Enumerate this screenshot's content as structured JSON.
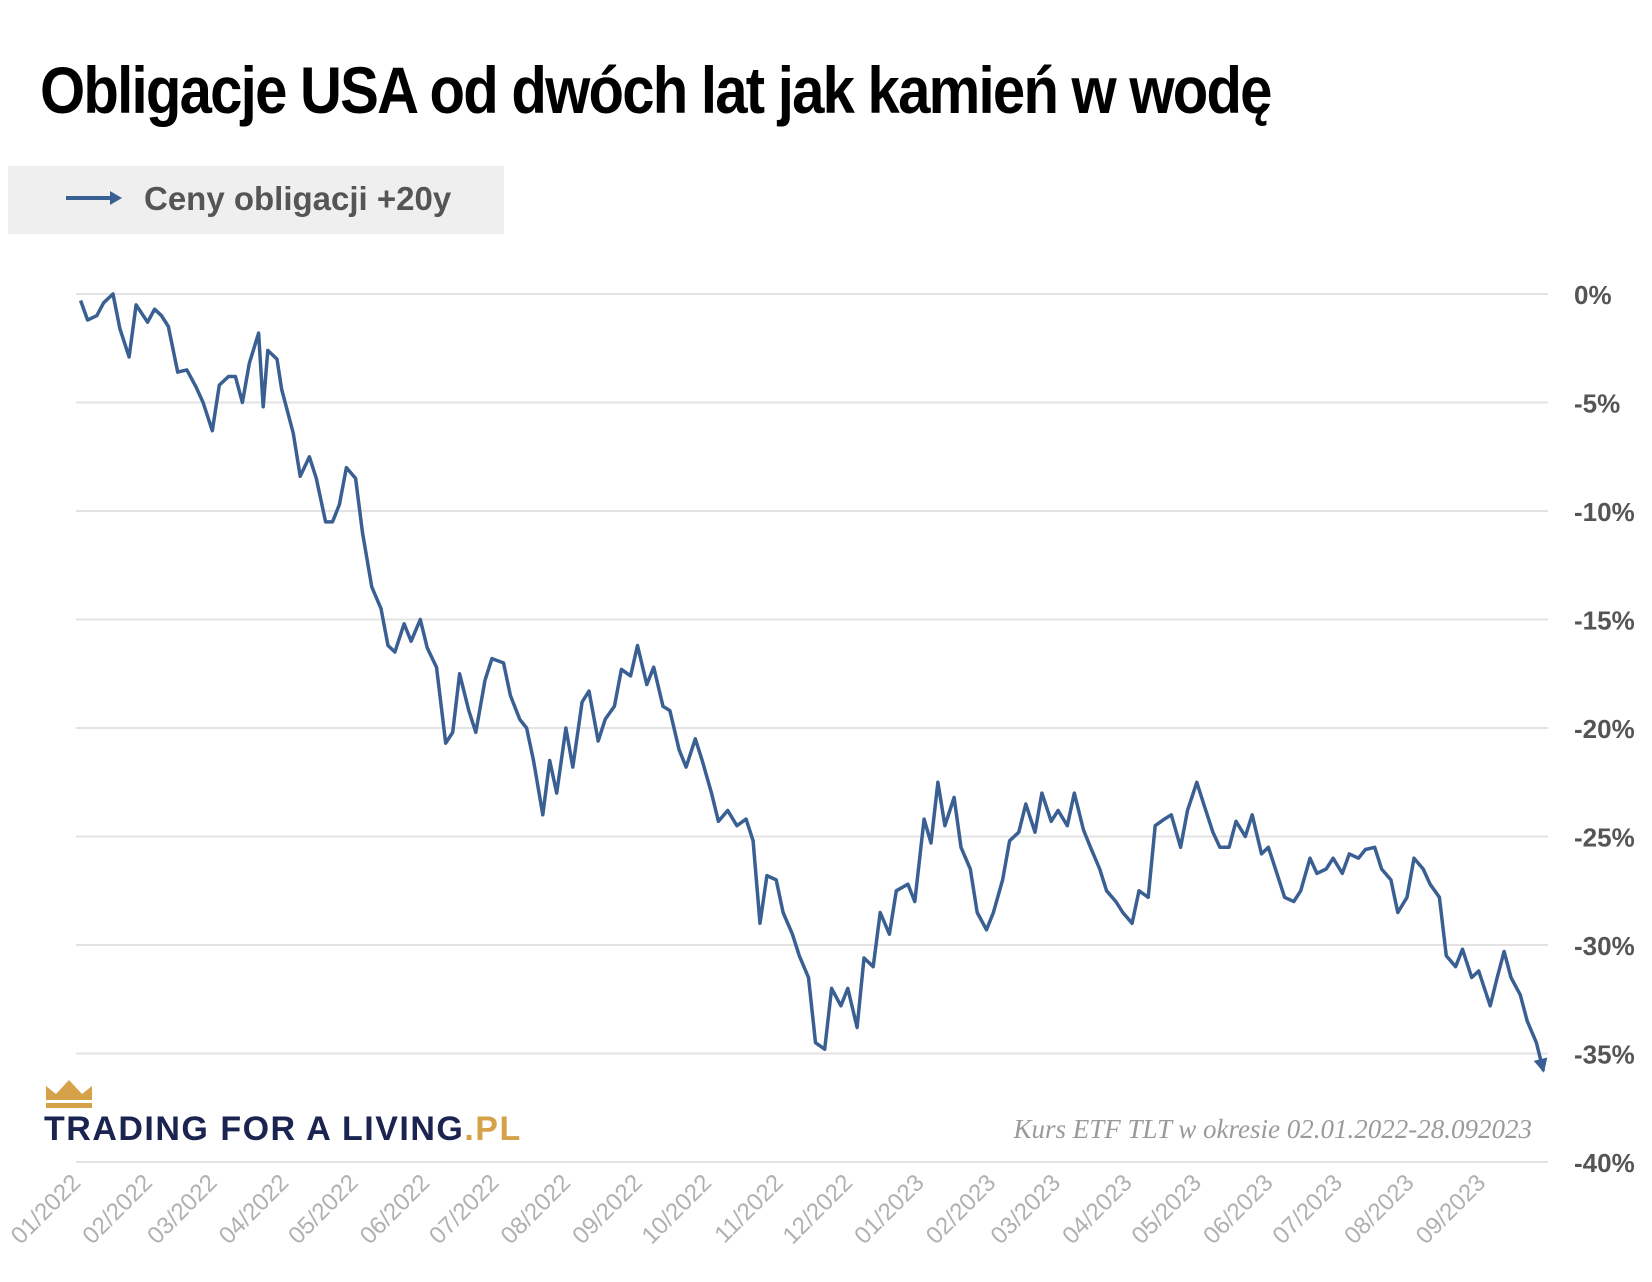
{
  "title": "Obligacje USA od dwóch lat jak kamień w wodę",
  "legend": {
    "label": "Ceny obligacji +20y",
    "color": "#3a5f92"
  },
  "brand": {
    "name": "TRADING FOR A LIVING",
    "suffix": ".PL",
    "text_color": "#1b2350",
    "accent_color": "#d5a24a"
  },
  "source_note": "Kurs ETF TLT w okresie 02.01.2022-28.092023",
  "chart_data": {
    "type": "line",
    "title": "Obligacje USA od dwóch lat jak kamień w wodę",
    "xlabel": "",
    "ylabel": "",
    "ylim": [
      -40,
      0
    ],
    "xlim": [
      "2022-01-01",
      "2023-09-30"
    ],
    "y_ticks": [
      0,
      -5,
      -10,
      -15,
      -20,
      -25,
      -30,
      -35,
      -40
    ],
    "y_tick_labels": [
      "0%",
      "-5%",
      "-10%",
      "-15%",
      "-20%",
      "-25%",
      "-30%",
      "-35%",
      "-40%"
    ],
    "x_ticks": [
      "2022-01-01",
      "2022-02-01",
      "2022-03-01",
      "2022-04-01",
      "2022-05-01",
      "2022-06-01",
      "2022-07-01",
      "2022-08-01",
      "2022-09-01",
      "2022-10-01",
      "2022-11-01",
      "2022-12-01",
      "2023-01-01",
      "2023-02-01",
      "2023-03-01",
      "2023-04-01",
      "2023-05-01",
      "2023-06-01",
      "2023-07-01",
      "2023-08-01",
      "2023-09-01"
    ],
    "x_tick_labels": [
      "01/2022",
      "02/2022",
      "03/2022",
      "04/2022",
      "05/2022",
      "06/2022",
      "07/2022",
      "08/2022",
      "09/2022",
      "10/2022",
      "11/2022",
      "12/2022",
      "01/2023",
      "02/2023",
      "03/2023",
      "04/2023",
      "05/2023",
      "06/2023",
      "07/2023",
      "08/2023",
      "09/2023"
    ],
    "grid": true,
    "legend_position": "top-left",
    "series": [
      {
        "name": "Ceny obligacji +20y",
        "color": "#3a5f92",
        "points": [
          [
            "2022-01-03",
            -0.3
          ],
          [
            "2022-01-06",
            -1.2
          ],
          [
            "2022-01-10",
            -1.0
          ],
          [
            "2022-01-13",
            -0.4
          ],
          [
            "2022-01-17",
            0.0
          ],
          [
            "2022-01-20",
            -1.6
          ],
          [
            "2022-01-24",
            -2.9
          ],
          [
            "2022-01-27",
            -0.5
          ],
          [
            "2022-02-01",
            -1.3
          ],
          [
            "2022-02-04",
            -0.7
          ],
          [
            "2022-02-07",
            -1.0
          ],
          [
            "2022-02-10",
            -1.5
          ],
          [
            "2022-02-14",
            -3.6
          ],
          [
            "2022-02-18",
            -3.5
          ],
          [
            "2022-02-22",
            -4.3
          ],
          [
            "2022-02-25",
            -5.0
          ],
          [
            "2022-03-01",
            -6.3
          ],
          [
            "2022-03-04",
            -4.2
          ],
          [
            "2022-03-08",
            -3.8
          ],
          [
            "2022-03-11",
            -3.8
          ],
          [
            "2022-03-14",
            -5.0
          ],
          [
            "2022-03-17",
            -3.2
          ],
          [
            "2022-03-21",
            -1.8
          ],
          [
            "2022-03-23",
            -5.2
          ],
          [
            "2022-03-25",
            -2.6
          ],
          [
            "2022-03-29",
            -3.0
          ],
          [
            "2022-03-31",
            -4.4
          ],
          [
            "2022-04-05",
            -6.4
          ],
          [
            "2022-04-08",
            -8.4
          ],
          [
            "2022-04-12",
            -7.5
          ],
          [
            "2022-04-15",
            -8.5
          ],
          [
            "2022-04-19",
            -10.5
          ],
          [
            "2022-04-22",
            -10.5
          ],
          [
            "2022-04-25",
            -9.7
          ],
          [
            "2022-04-28",
            -8.0
          ],
          [
            "2022-05-02",
            -8.5
          ],
          [
            "2022-05-05",
            -11.0
          ],
          [
            "2022-05-09",
            -13.5
          ],
          [
            "2022-05-13",
            -14.5
          ],
          [
            "2022-05-16",
            -16.2
          ],
          [
            "2022-05-19",
            -16.5
          ],
          [
            "2022-05-23",
            -15.2
          ],
          [
            "2022-05-26",
            -16.0
          ],
          [
            "2022-05-30",
            -15.0
          ],
          [
            "2022-06-02",
            -16.3
          ],
          [
            "2022-06-06",
            -17.2
          ],
          [
            "2022-06-10",
            -20.7
          ],
          [
            "2022-06-13",
            -20.2
          ],
          [
            "2022-06-16",
            -17.5
          ],
          [
            "2022-06-20",
            -19.2
          ],
          [
            "2022-06-23",
            -20.2
          ],
          [
            "2022-06-27",
            -17.8
          ],
          [
            "2022-06-30",
            -16.8
          ],
          [
            "2022-07-05",
            -17.0
          ],
          [
            "2022-07-08",
            -18.5
          ],
          [
            "2022-07-12",
            -19.6
          ],
          [
            "2022-07-15",
            -20.0
          ],
          [
            "2022-07-18",
            -21.5
          ],
          [
            "2022-07-22",
            -24.0
          ],
          [
            "2022-07-25",
            -21.5
          ],
          [
            "2022-07-28",
            -23.0
          ],
          [
            "2022-08-01",
            -20.0
          ],
          [
            "2022-08-04",
            -21.8
          ],
          [
            "2022-08-08",
            -18.8
          ],
          [
            "2022-08-11",
            -18.3
          ],
          [
            "2022-08-15",
            -20.6
          ],
          [
            "2022-08-18",
            -19.6
          ],
          [
            "2022-08-22",
            -19.0
          ],
          [
            "2022-08-25",
            -17.3
          ],
          [
            "2022-08-29",
            -17.6
          ],
          [
            "2022-09-01",
            -16.2
          ],
          [
            "2022-09-05",
            -18.0
          ],
          [
            "2022-09-08",
            -17.2
          ],
          [
            "2022-09-12",
            -19.0
          ],
          [
            "2022-09-15",
            -19.2
          ],
          [
            "2022-09-19",
            -21.0
          ],
          [
            "2022-09-22",
            -21.8
          ],
          [
            "2022-09-26",
            -20.5
          ],
          [
            "2022-09-29",
            -21.5
          ],
          [
            "2022-10-03",
            -23.0
          ],
          [
            "2022-10-06",
            -24.3
          ],
          [
            "2022-10-10",
            -23.8
          ],
          [
            "2022-10-14",
            -24.5
          ],
          [
            "2022-10-18",
            -24.2
          ],
          [
            "2022-10-21",
            -25.2
          ],
          [
            "2022-10-24",
            -29.0
          ],
          [
            "2022-10-27",
            -26.8
          ],
          [
            "2022-10-31",
            -27.0
          ],
          [
            "2022-11-03",
            -28.5
          ],
          [
            "2022-11-07",
            -29.5
          ],
          [
            "2022-11-10",
            -30.5
          ],
          [
            "2022-11-14",
            -31.5
          ],
          [
            "2022-11-17",
            -34.5
          ],
          [
            "2022-11-21",
            -34.8
          ],
          [
            "2022-11-24",
            -32.0
          ],
          [
            "2022-11-28",
            -32.8
          ],
          [
            "2022-12-01",
            -32.0
          ],
          [
            "2022-12-05",
            -33.8
          ],
          [
            "2022-12-08",
            -30.6
          ],
          [
            "2022-12-12",
            -31.0
          ],
          [
            "2022-12-15",
            -28.5
          ],
          [
            "2022-12-19",
            -29.5
          ],
          [
            "2022-12-22",
            -27.5
          ],
          [
            "2022-12-27",
            -27.2
          ],
          [
            "2022-12-30",
            -28.0
          ],
          [
            "2023-01-03",
            -24.2
          ],
          [
            "2023-01-06",
            -25.3
          ],
          [
            "2023-01-09",
            -22.5
          ],
          [
            "2023-01-12",
            -24.5
          ],
          [
            "2023-01-16",
            -23.2
          ],
          [
            "2023-01-19",
            -25.5
          ],
          [
            "2023-01-23",
            -26.5
          ],
          [
            "2023-01-26",
            -28.5
          ],
          [
            "2023-01-30",
            -29.3
          ],
          [
            "2023-02-02",
            -28.5
          ],
          [
            "2023-02-06",
            -27.0
          ],
          [
            "2023-02-09",
            -25.2
          ],
          [
            "2023-02-13",
            -24.8
          ],
          [
            "2023-02-16",
            -23.5
          ],
          [
            "2023-02-20",
            -24.8
          ],
          [
            "2023-02-23",
            -23.0
          ],
          [
            "2023-02-27",
            -24.3
          ],
          [
            "2023-03-02",
            -23.8
          ],
          [
            "2023-03-06",
            -24.5
          ],
          [
            "2023-03-09",
            -23.0
          ],
          [
            "2023-03-13",
            -24.7
          ],
          [
            "2023-03-16",
            -25.5
          ],
          [
            "2023-03-20",
            -26.5
          ],
          [
            "2023-03-23",
            -27.5
          ],
          [
            "2023-03-27",
            -28.0
          ],
          [
            "2023-03-30",
            -28.5
          ],
          [
            "2023-04-03",
            -29.0
          ],
          [
            "2023-04-06",
            -27.5
          ],
          [
            "2023-04-10",
            -27.8
          ],
          [
            "2023-04-13",
            -24.5
          ],
          [
            "2023-04-17",
            -24.2
          ],
          [
            "2023-04-20",
            -24.0
          ],
          [
            "2023-04-24",
            -25.5
          ],
          [
            "2023-04-27",
            -23.8
          ],
          [
            "2023-05-01",
            -22.5
          ],
          [
            "2023-05-04",
            -23.5
          ],
          [
            "2023-05-08",
            -24.8
          ],
          [
            "2023-05-11",
            -25.5
          ],
          [
            "2023-05-15",
            -25.5
          ],
          [
            "2023-05-18",
            -24.3
          ],
          [
            "2023-05-22",
            -25.0
          ],
          [
            "2023-05-25",
            -24.0
          ],
          [
            "2023-05-29",
            -25.8
          ],
          [
            "2023-06-01",
            -25.5
          ],
          [
            "2023-06-05",
            -26.8
          ],
          [
            "2023-06-08",
            -27.8
          ],
          [
            "2023-06-12",
            -28.0
          ],
          [
            "2023-06-15",
            -27.5
          ],
          [
            "2023-06-19",
            -26.0
          ],
          [
            "2023-06-22",
            -26.7
          ],
          [
            "2023-06-26",
            -26.5
          ],
          [
            "2023-06-29",
            -26.0
          ],
          [
            "2023-07-03",
            -26.7
          ],
          [
            "2023-07-06",
            -25.8
          ],
          [
            "2023-07-10",
            -26.0
          ],
          [
            "2023-07-13",
            -25.6
          ],
          [
            "2023-07-17",
            -25.5
          ],
          [
            "2023-07-20",
            -26.5
          ],
          [
            "2023-07-24",
            -27.0
          ],
          [
            "2023-07-27",
            -28.5
          ],
          [
            "2023-07-31",
            -27.8
          ],
          [
            "2023-08-03",
            -26.0
          ],
          [
            "2023-08-07",
            -26.5
          ],
          [
            "2023-08-10",
            -27.2
          ],
          [
            "2023-08-14",
            -27.8
          ],
          [
            "2023-08-17",
            -30.5
          ],
          [
            "2023-08-21",
            -31.0
          ],
          [
            "2023-08-24",
            -30.2
          ],
          [
            "2023-08-28",
            -31.5
          ],
          [
            "2023-08-31",
            -31.2
          ],
          [
            "2023-09-05",
            -32.8
          ],
          [
            "2023-09-08",
            -31.5
          ],
          [
            "2023-09-11",
            -30.3
          ],
          [
            "2023-09-14",
            -31.5
          ],
          [
            "2023-09-18",
            -32.3
          ],
          [
            "2023-09-21",
            -33.5
          ],
          [
            "2023-09-25",
            -34.5
          ],
          [
            "2023-09-28",
            -35.8
          ]
        ]
      }
    ]
  }
}
